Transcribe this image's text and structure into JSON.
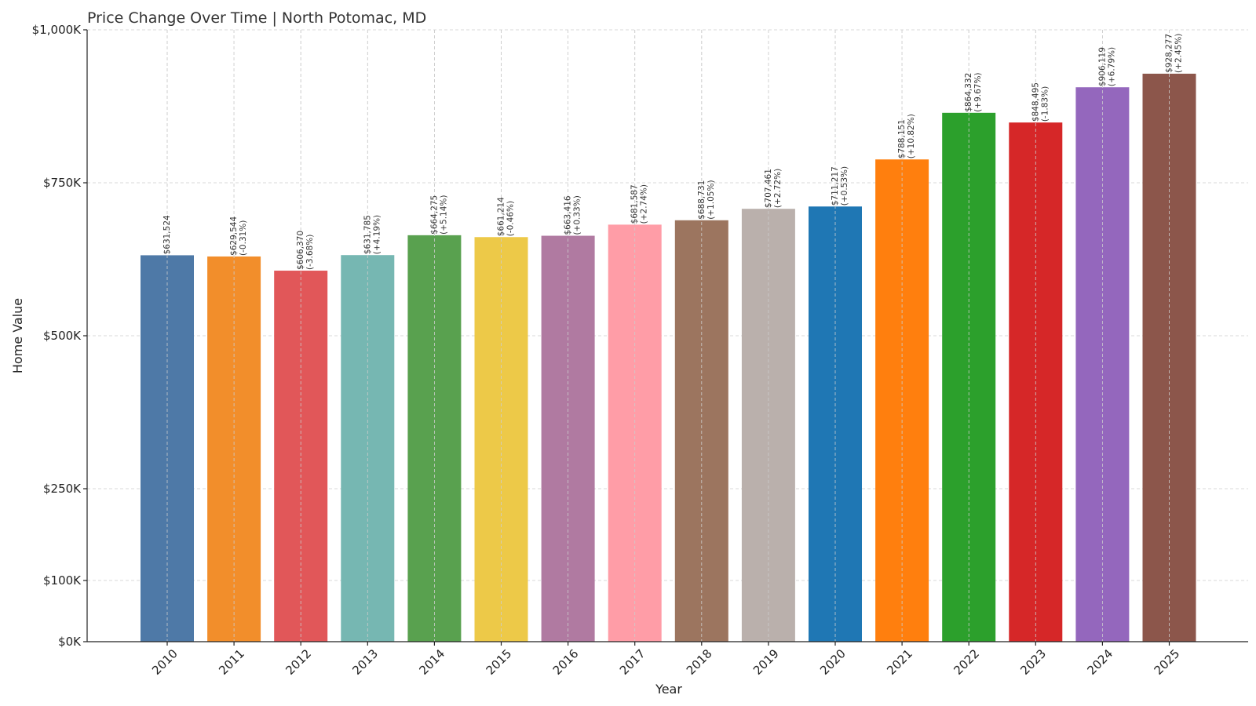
{
  "chart_data": {
    "type": "bar",
    "title": "Price Change Over Time | North Potomac, MD",
    "xlabel": "Year",
    "ylabel": "Home Value",
    "grid": true,
    "categories": [
      "2010",
      "2011",
      "2012",
      "2013",
      "2014",
      "2015",
      "2016",
      "2017",
      "2018",
      "2019",
      "2020",
      "2021",
      "2022",
      "2023",
      "2024",
      "2025"
    ],
    "values": [
      631524,
      629544,
      606370,
      631785,
      664275,
      661214,
      663416,
      681587,
      688731,
      707461,
      711217,
      788151,
      864332,
      848495,
      906119,
      928277
    ],
    "value_labels": [
      "$631,524",
      "$629,544",
      "$606,370",
      "$631,785",
      "$664,275",
      "$661,214",
      "$663,416",
      "$681,587",
      "$688,731",
      "$707,461",
      "$711,217",
      "$788,151",
      "$864,332",
      "$848,495",
      "$906,119",
      "$928,277"
    ],
    "change_labels": [
      "",
      "(-0.31%)",
      "(-3.68%)",
      "(+4.19%)",
      "(+5.14%)",
      "(-0.46%)",
      "(+0.33%)",
      "(+2.74%)",
      "(+1.05%)",
      "(+2.72%)",
      "(+0.53%)",
      "(+10.82%)",
      "(+9.67%)",
      "(-1.83%)",
      "(+6.79%)",
      "(+2.45%)"
    ],
    "colors": [
      "#4e79a7",
      "#f28e2b",
      "#e15759",
      "#76b7b2",
      "#59a14f",
      "#edc948",
      "#b07aa1",
      "#ff9da7",
      "#9c755f",
      "#bab0ac",
      "#1f77b4",
      "#ff7f0e",
      "#2ca02c",
      "#d62728",
      "#9467bd",
      "#8c564b"
    ],
    "ylim": [
      0,
      1000000
    ],
    "yticks": [
      0,
      100000,
      250000,
      500000,
      750000,
      1000000
    ],
    "ytick_labels": [
      "$0K",
      "$100K",
      "$250K",
      "$500K",
      "$750K",
      "$1,000K"
    ]
  }
}
